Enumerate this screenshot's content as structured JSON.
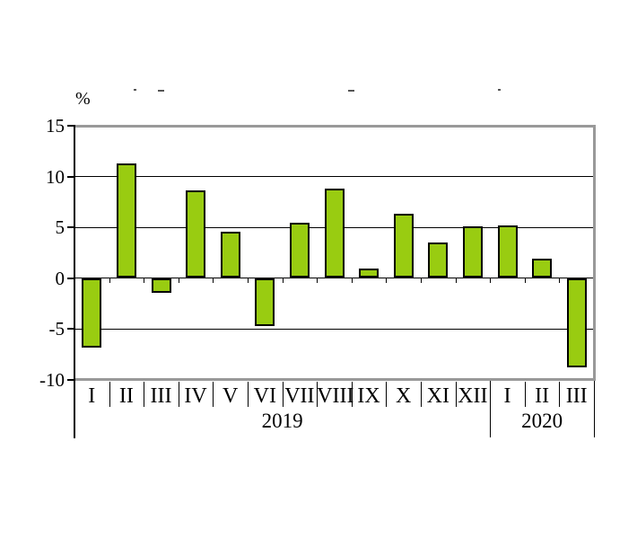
{
  "page": {
    "background": "#ffffff",
    "title_remnants_note": "faint unreadable ink fragments of a cropped title"
  },
  "chart_data": {
    "type": "bar",
    "title": "",
    "unit_label": "%",
    "xlabel": "",
    "ylabel": "%",
    "categories": [
      "I",
      "II",
      "III",
      "IV",
      "V",
      "VI",
      "VII",
      "VIII",
      "IX",
      "X",
      "XI",
      "XII",
      "I",
      "II",
      "III"
    ],
    "values": [
      -6.9,
      11.3,
      -1.5,
      8.6,
      4.6,
      -4.7,
      5.4,
      8.8,
      0.9,
      6.3,
      3.5,
      5.1,
      5.2,
      1.9,
      -8.8
    ],
    "group_labels": [
      {
        "label": "2019",
        "start": 0,
        "end": 11
      },
      {
        "label": "2020",
        "start": 12,
        "end": 14
      }
    ],
    "y_ticks": [
      15,
      10,
      5,
      0,
      -5,
      -10
    ],
    "y_tick_labels": [
      "15",
      "10",
      "5",
      "0",
      "-5",
      "-10"
    ],
    "ylim": [
      -10,
      15
    ],
    "grid": true,
    "legend": "none",
    "bar_color": "#99CC11",
    "bar_border_color": "#000000",
    "grid_color": "#000000",
    "frame_color": "#999999"
  }
}
